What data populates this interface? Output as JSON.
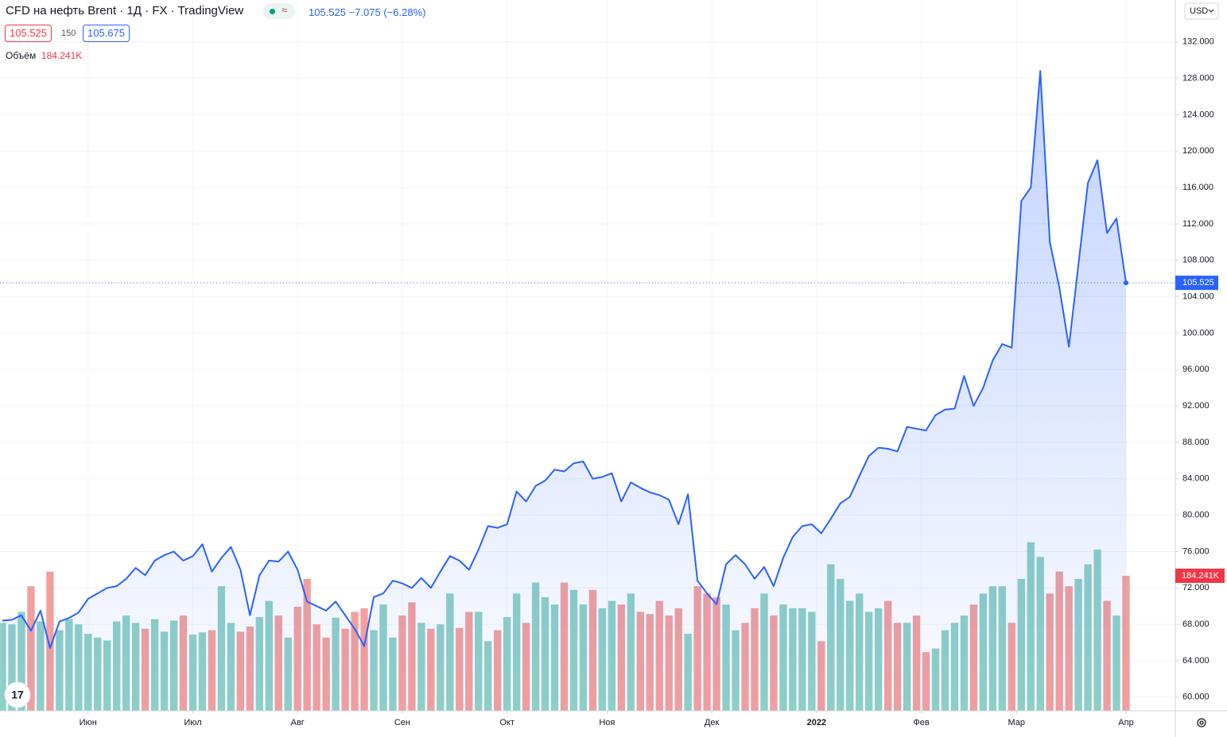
{
  "header": {
    "symbol": "CFD на нефть Brent",
    "interval": "1Д",
    "exchange": "FX",
    "source": "TradingView",
    "last": "105.525",
    "change": "−7.075 (−6.28%)",
    "bid": "105.525",
    "spread": "150",
    "ask": "105.675",
    "currency": "USD"
  },
  "chart_data": {
    "type": "line",
    "series": [
      {
        "color": "#2962ff",
        "values": [
          68.4,
          68.5,
          69.0,
          67.3,
          69.5,
          65.4,
          68.3,
          68.7,
          69.3,
          70.8,
          71.4,
          72.0,
          72.2,
          73.0,
          74.2,
          73.4,
          75.0,
          75.6,
          76.0,
          75.0,
          75.5,
          76.8,
          73.8,
          75.3,
          76.5,
          74.0,
          69.0,
          73.4,
          75.0,
          74.9,
          76.0,
          74.0,
          70.5,
          70.0,
          69.5,
          70.5,
          69.0,
          67.5,
          65.6,
          71.0,
          71.4,
          72.8,
          72.5,
          72.0,
          73.1,
          72.0,
          73.8,
          75.5,
          75.0,
          74.0,
          76.2,
          78.8,
          78.6,
          79.0,
          82.6,
          81.5,
          83.2,
          83.8,
          85.0,
          84.8,
          85.7,
          85.9,
          84.0,
          84.2,
          84.6,
          81.5,
          83.6,
          83.0,
          82.5,
          82.2,
          81.7,
          79.0,
          82.3,
          72.8,
          71.4,
          70.2,
          74.6,
          75.6,
          74.6,
          73.0,
          74.3,
          72.2,
          75.3,
          77.6,
          78.8,
          79.0,
          78.0,
          79.6,
          81.3,
          82.0,
          84.3,
          86.5,
          87.4,
          87.3,
          87.0,
          89.7,
          89.5,
          89.3,
          91.0,
          91.6,
          91.7,
          95.3,
          92.0,
          94.0,
          97.0,
          98.8,
          98.4,
          114.5,
          116.0,
          128.8,
          110.0,
          105.0,
          98.5,
          107.5,
          116.5,
          119.0,
          111.0,
          112.6,
          105.525
        ]
      },
      {
        "name": "Объём",
        "type": "bar",
        "up_color": "#8fd0c7",
        "down_color": "#f2a09e",
        "last_label": "184.241K",
        "values": [
          120000,
          118000,
          135000,
          170000,
          122000,
          190000,
          110000,
          125000,
          118000,
          105000,
          100000,
          96000,
          122000,
          130000,
          120000,
          112000,
          125000,
          108000,
          123000,
          130000,
          104000,
          107000,
          110000,
          170000,
          120000,
          108000,
          115000,
          128000,
          150000,
          130000,
          100000,
          142000,
          180000,
          118000,
          100000,
          127000,
          112000,
          135000,
          140000,
          110000,
          145000,
          100000,
          130000,
          148000,
          120000,
          112000,
          118000,
          160000,
          113000,
          135000,
          135000,
          95000,
          110000,
          128000,
          160000,
          120000,
          175000,
          155000,
          145000,
          175000,
          165000,
          145000,
          165000,
          140000,
          150000,
          145000,
          160000,
          135000,
          132000,
          150000,
          130000,
          140000,
          105000,
          170000,
          160000,
          155000,
          145000,
          110000,
          120000,
          140000,
          160000,
          130000,
          145000,
          140000,
          140000,
          135000,
          95000,
          200000,
          180000,
          150000,
          160000,
          135000,
          140000,
          150000,
          120000,
          120000,
          130000,
          80000,
          85000,
          110000,
          120000,
          130000,
          145000,
          160000,
          170000,
          170000,
          120000,
          180000,
          230000,
          210000,
          160000,
          190000,
          170000,
          180000,
          200000,
          220000,
          150000,
          130000,
          184241
        ]
      }
    ],
    "xlim": [
      0,
      118
    ],
    "xticks": [
      {
        "value": 9,
        "label": "Июн"
      },
      {
        "value": 20,
        "label": "Июл"
      },
      {
        "value": 31,
        "label": "Авг"
      },
      {
        "value": 42,
        "label": "Сен"
      },
      {
        "value": 53,
        "label": "Окт"
      },
      {
        "value": 63.5,
        "label": "Ноя"
      },
      {
        "value": 74.5,
        "label": "Дек"
      },
      {
        "value": 85.5,
        "label": "2022"
      },
      {
        "value": 96.5,
        "label": "Фев"
      },
      {
        "value": 106.5,
        "label": "Мар"
      },
      {
        "value": 118,
        "label": "Апр"
      }
    ],
    "ylim": [
      58.5,
      136.6
    ],
    "yticks": [
      {
        "value": 60,
        "label": "60.000"
      },
      {
        "value": 64,
        "label": "64.000"
      },
      {
        "value": 68,
        "label": "68.000"
      },
      {
        "value": 72,
        "label": "72.000"
      },
      {
        "value": 76,
        "label": "76.000"
      },
      {
        "value": 80,
        "label": "80.000"
      },
      {
        "value": 84,
        "label": "84.000"
      },
      {
        "value": 88,
        "label": "88.000"
      },
      {
        "value": 92,
        "label": "92.000"
      },
      {
        "value": 96,
        "label": "96.000"
      },
      {
        "value": 100,
        "label": "100.000"
      },
      {
        "value": 104,
        "label": "104.000"
      },
      {
        "value": 108,
        "label": "108.000"
      },
      {
        "value": 112,
        "label": "112.000"
      },
      {
        "value": 116,
        "label": "116.000"
      },
      {
        "value": 120,
        "label": "120.000"
      },
      {
        "value": 124,
        "label": "124.000"
      },
      {
        "value": 128,
        "label": "128.000"
      },
      {
        "value": 132,
        "label": "132.000"
      }
    ],
    "grid": true
  }
}
